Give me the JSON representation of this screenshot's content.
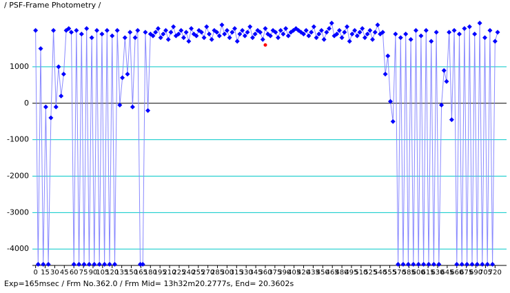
{
  "chart_data": {
    "type": "line",
    "title": "/ PSF-Frame Photometry /",
    "footer": "Exp=165msec / Frm No.362.0 / Frm Mid= 13h32m20.2777s,  End= 20.3602s",
    "x": [
      0,
      4,
      8,
      12,
      16,
      20,
      24,
      28,
      32,
      36,
      40,
      44,
      48,
      52,
      56,
      60,
      64,
      68,
      72,
      76,
      80,
      84,
      88,
      92,
      96,
      100,
      104,
      108,
      112,
      116,
      120,
      124,
      128,
      132,
      136,
      140,
      144,
      148,
      152,
      156,
      160,
      164,
      168,
      172,
      176,
      180,
      184,
      188,
      192,
      196,
      200,
      204,
      208,
      212,
      216,
      220,
      224,
      228,
      232,
      236,
      240,
      244,
      248,
      252,
      256,
      260,
      264,
      268,
      272,
      276,
      280,
      284,
      288,
      292,
      296,
      300,
      304,
      308,
      312,
      316,
      320,
      324,
      328,
      332,
      336,
      340,
      344,
      348,
      352,
      356,
      360,
      364,
      368,
      372,
      376,
      380,
      384,
      388,
      392,
      396,
      400,
      404,
      408,
      412,
      416,
      420,
      424,
      428,
      432,
      436,
      440,
      444,
      448,
      452,
      456,
      460,
      464,
      468,
      472,
      476,
      480,
      484,
      488,
      492,
      496,
      500,
      504,
      508,
      512,
      516,
      520,
      524,
      528,
      532,
      536,
      540,
      544,
      548,
      552,
      556,
      560,
      564,
      568,
      572,
      576,
      580,
      584,
      588,
      592,
      596,
      600,
      604,
      608,
      612,
      616,
      620,
      624,
      628,
      632,
      636,
      640,
      644,
      648,
      652,
      656,
      660,
      664,
      668,
      672,
      676,
      680,
      684,
      688,
      692,
      696,
      700,
      704,
      708,
      712,
      716,
      720,
      724
    ],
    "values": [
      2000,
      -4420,
      1500,
      -4420,
      -100,
      -4420,
      -400,
      2000,
      -100,
      1000,
      200,
      800,
      2000,
      2050,
      1950,
      -4420,
      2000,
      -4420,
      1900,
      -4420,
      2050,
      -4420,
      1800,
      -4420,
      2000,
      -4420,
      1900,
      -4420,
      2000,
      -4420,
      1850,
      -4420,
      2000,
      -50,
      700,
      1800,
      800,
      1950,
      -100,
      1800,
      2000,
      -4420,
      -4420,
      1950,
      -200,
      1900,
      1850,
      1950,
      2050,
      1800,
      1900,
      2000,
      1750,
      1950,
      2100,
      1850,
      1900,
      2000,
      1800,
      1950,
      1700,
      2050,
      1900,
      1850,
      2000,
      1950,
      1800,
      2100,
      1900,
      1750,
      2000,
      1950,
      1850,
      2150,
      1900,
      2000,
      1800,
      1950,
      2050,
      1700,
      1900,
      2000,
      1850,
      1950,
      2100,
      1800,
      1900,
      2000,
      1950,
      1750,
      2050,
      1900,
      1850,
      2000,
      1950,
      1800,
      2000,
      1900,
      2050,
      1850,
      1950,
      2000,
      2050,
      2000,
      1950,
      1900,
      2000,
      1850,
      1950,
      2100,
      1800,
      1900,
      2000,
      1750,
      1950,
      2050,
      2200,
      1850,
      1900,
      2000,
      1800,
      1950,
      2100,
      1700,
      1900,
      2000,
      1850,
      1950,
      2050,
      1800,
      1900,
      2000,
      1750,
      1950,
      2150,
      1900,
      1950,
      800,
      1300,
      50,
      -500,
      1900,
      -4420,
      1800,
      -4420,
      1900,
      -4420,
      1750,
      -4420,
      2000,
      -4420,
      1850,
      -4420,
      2000,
      -4420,
      1700,
      -4420,
      1950,
      -4420,
      -50,
      900,
      600,
      1950,
      -450,
      2000,
      -4420,
      1900,
      -4420,
      2050,
      -4420,
      2100,
      -4420,
      1900,
      -4420,
      2200,
      -4420,
      1800,
      -4420,
      2000,
      -4420,
      1700,
      1950
    ],
    "color": "#0000ff",
    "line_color": "#8888ff",
    "highlight": {
      "x": 360,
      "y": 1600,
      "color": "#ff0000"
    },
    "xlim": [
      -5,
      738
    ],
    "ylim": [
      -4450,
      2550
    ],
    "xticks": [
      0,
      15,
      30,
      45,
      60,
      75,
      90,
      105,
      120,
      135,
      150,
      165,
      180,
      195,
      210,
      225,
      240,
      255,
      270,
      285,
      300,
      315,
      330,
      345,
      360,
      375,
      390,
      405,
      420,
      435,
      450,
      465,
      480,
      495,
      510,
      525,
      540,
      555,
      570,
      585,
      600,
      615,
      630,
      645,
      660,
      675,
      690,
      705,
      720
    ],
    "yticks": [
      -4000,
      -3000,
      -2000,
      -1000,
      0,
      1000
    ],
    "grid": true,
    "grid_color": "#00c8c8"
  }
}
